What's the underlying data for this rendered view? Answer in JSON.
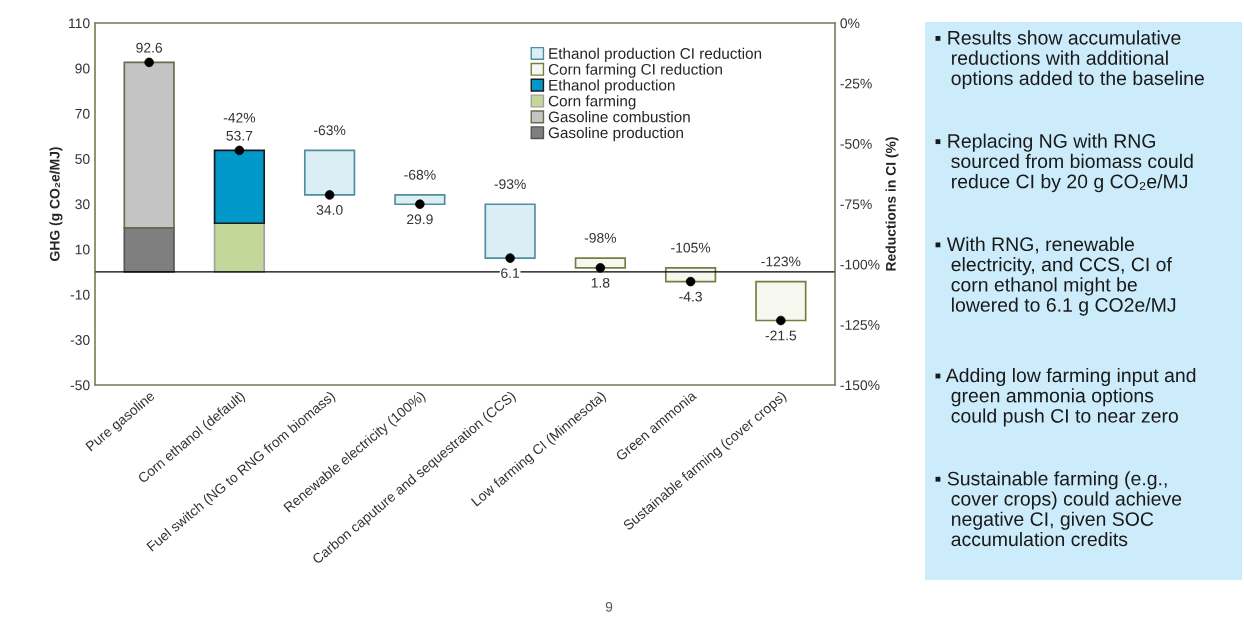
{
  "chart_data": {
    "type": "bar",
    "stacked": true,
    "ylabel": "GHG (g CO₂e/MJ)",
    "y2label": "Reductions in CI (%)",
    "categories": [
      "Pure gasoline",
      "Corn ethanol (default)",
      "Fuel switch (NG to RNG from biomass)",
      "Renewable electricity (100%)",
      "Carbon caputure and sequestration (CCS)",
      "Low farming CI (Minnesota)",
      "Green ammonia",
      "Sustainable farming (cover crops)"
    ],
    "ylim": [
      -50,
      110
    ],
    "yticks": [
      -50,
      -30,
      -10,
      10,
      30,
      50,
      70,
      90,
      110
    ],
    "y2lim": [
      -150,
      0
    ],
    "y2ticks": [
      {
        "value": 0,
        "label": "0%"
      },
      {
        "value": -25,
        "label": "-25%"
      },
      {
        "value": -50,
        "label": "-50%"
      },
      {
        "value": -75,
        "label": "-75%"
      },
      {
        "value": -100,
        "label": "-100%"
      },
      {
        "value": -125,
        "label": "-125%"
      },
      {
        "value": -150,
        "label": "-150%"
      }
    ],
    "series": [
      {
        "name": "Gasoline production",
        "color": "#7f7f7f",
        "values": [
          19.5,
          null,
          null,
          null,
          null,
          null,
          null,
          null
        ]
      },
      {
        "name": "Gasoline combustion",
        "color": "#c4c4c4",
        "values": [
          73.1,
          null,
          null,
          null,
          null,
          null,
          null,
          null
        ]
      },
      {
        "name": "Corn farming",
        "color": "#c4d79b",
        "values": [
          null,
          21.5,
          null,
          null,
          null,
          null,
          null,
          null
        ]
      },
      {
        "name": "Ethanol production",
        "color": "#0098c8",
        "values": [
          null,
          32.2,
          null,
          null,
          null,
          null,
          null,
          null
        ]
      },
      {
        "name": "Corn farming CI reduction",
        "color": "#f6f7ee",
        "values": [
          null,
          null,
          null,
          null,
          null,
          4.3,
          6.1,
          17.2
        ],
        "base": [
          null,
          null,
          null,
          null,
          null,
          1.8,
          -4.3,
          -21.5
        ]
      },
      {
        "name": "Ethanol production CI reduction",
        "color": "#daeef4",
        "values": [
          null,
          null,
          19.7,
          4.1,
          23.8,
          null,
          null,
          null
        ],
        "base": [
          null,
          null,
          34.0,
          29.9,
          6.1,
          null,
          null,
          null
        ]
      },
      {
        "type": "scatter",
        "color": "#000000",
        "marker": "circle",
        "values": [
          92.6,
          53.7,
          34.0,
          29.9,
          6.1,
          1.8,
          -4.3,
          -21.5
        ],
        "value_labels": [
          "92.6",
          "53.7",
          "34.0",
          "29.9",
          "6.1",
          "1.8",
          "-4.3",
          "-21.5"
        ]
      }
    ],
    "ref_lines": [
      {
        "axis": "y",
        "value": 0,
        "color": "#000000"
      }
    ],
    "legend": "top right",
    "grid": false,
    "annotations": [
      {
        "text": "-42%",
        "x": "Corn ethanol (default)",
        "y": 53.7
      },
      {
        "text": "-63%",
        "x": "Fuel switch (NG to RNG from biomass)",
        "y": 53.7
      },
      {
        "text": "-68%",
        "x": "Renewable electricity (100%)",
        "y": 34.0
      },
      {
        "text": "-93%",
        "x": "Carbon caputure and sequestration (CCS)",
        "y": 29.9
      },
      {
        "text": "-98%",
        "x": "Low farming CI (Minnesota)",
        "y": 6.1
      },
      {
        "text": "-105%",
        "x": "Green ammonia",
        "y": 1.8
      },
      {
        "text": "-123%",
        "x": "Sustainable farming (cover crops)",
        "y": -4.3
      },
      "▪ Results show accumulative\n   reductions with additional\n   options added to the baseline",
      "▪ Replacing NG with RNG\n   sourced from biomass could\n   reduce CI by 20 g CO₂e/MJ",
      "▪ With RNG, renewable\n   electricity, and CCS, CI of\n   corn ethanol might be\n   lowered to 6.1 g CO2e/MJ",
      "▪ Adding low farming input and\n   green ammonia options\n   could push CI to near zero",
      "▪ Sustainable farming (e.g.,\n   cover crops) could achieve\n   negative CI, given SOC\n   accumulation credits",
      "9"
    ]
  }
}
